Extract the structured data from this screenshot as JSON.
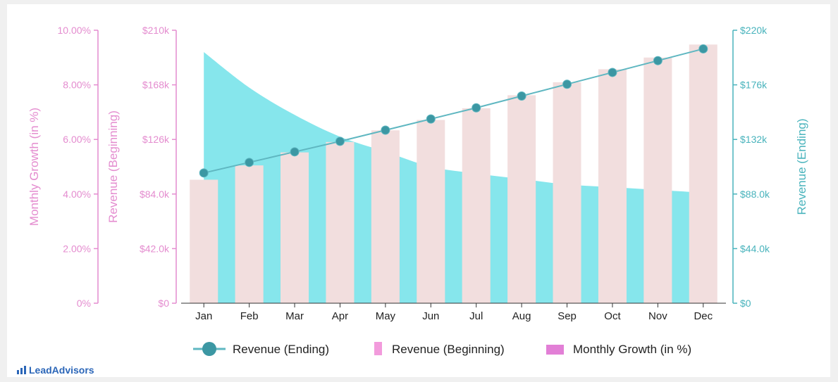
{
  "brand": {
    "name": "LeadAdvisors",
    "icon": "bar-chart-icon"
  },
  "colors": {
    "growth": "#e48ccf",
    "begin": "#f2dede",
    "end_line": "#5fb7c1",
    "end_marker": "#3c97a3",
    "growth_area": "#57dde4",
    "overlap": "#c9d2d2",
    "right_axis": "#48b3bc"
  },
  "chart_data": {
    "type": "bar",
    "categories": [
      "Jan",
      "Feb",
      "Mar",
      "Apr",
      "May",
      "Jun",
      "Jul",
      "Aug",
      "Sep",
      "Oct",
      "Nov",
      "Dec"
    ],
    "series": [
      {
        "name": "Revenue (Ending)",
        "type": "line",
        "axis": "right",
        "values": [
          105000,
          113500,
          122000,
          130500,
          139500,
          148500,
          157500,
          167000,
          176500,
          186000,
          195500,
          205000
        ]
      },
      {
        "name": "Revenue (Beginning)",
        "type": "bar",
        "axis": "left-inner",
        "values": [
          95000,
          106000,
          116000,
          124000,
          133000,
          141000,
          150000,
          160000,
          170000,
          180000,
          189000,
          199000
        ]
      },
      {
        "name": "Monthly Growth (in %)",
        "type": "area",
        "axis": "left-outer",
        "values": [
          9.2,
          7.9,
          6.9,
          6.1,
          5.55,
          5.0,
          4.75,
          4.55,
          4.35,
          4.25,
          4.15,
          4.05
        ]
      }
    ],
    "axes": {
      "left_outer": {
        "label": "Monthly Growth (in %)",
        "ticks": [
          "0%",
          "2.00%",
          "4.00%",
          "6.00%",
          "8.00%",
          "10.00%"
        ],
        "range": [
          0,
          10
        ]
      },
      "left_inner": {
        "label": "Revenue (Beginning)",
        "ticks": [
          "$0",
          "$42.0k",
          "$84.0k",
          "$126k",
          "$168k",
          "$210k"
        ],
        "range": [
          0,
          210000
        ]
      },
      "right": {
        "label": "Revenue (Ending)",
        "ticks": [
          "$0",
          "$44.0k",
          "$88.0k",
          "$132k",
          "$176k",
          "$220k"
        ],
        "range": [
          0,
          220000
        ]
      }
    },
    "legend": {
      "placement": "bottom",
      "items": [
        {
          "label": "Revenue (Ending)",
          "symbol": "line-marker"
        },
        {
          "label": "Revenue (Beginning)",
          "symbol": "bar"
        },
        {
          "label": "Monthly Growth (in %)",
          "symbol": "area"
        }
      ]
    },
    "grid": false
  }
}
